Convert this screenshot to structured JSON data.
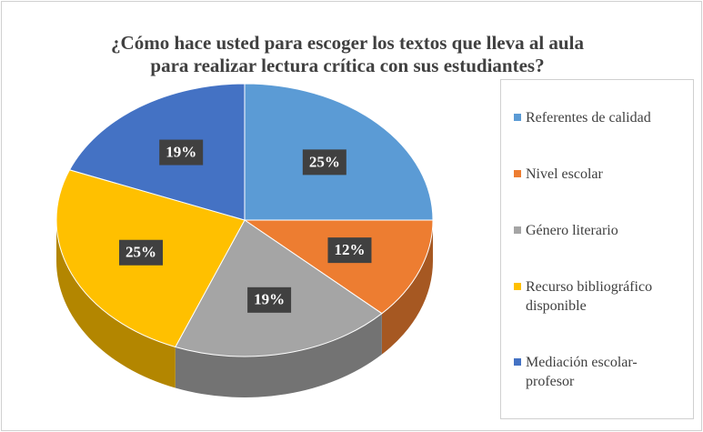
{
  "chart_data": {
    "type": "pie",
    "title": [
      "¿Cómo hace usted para escoger los textos que lleva al aula",
      "para realizar lectura crítica con sus estudiantes?"
    ],
    "categories": [
      "Referentes de calidad",
      "Nivel escolar",
      "Género literario",
      "Recurso bibliográfico disponible",
      "Mediación escolar-profesor"
    ],
    "values": [
      25,
      12,
      19,
      25,
      19
    ],
    "value_labels": [
      "25%",
      "12%",
      "19%",
      "25%",
      "19%"
    ],
    "colors": [
      "#5b9bd5",
      "#ed7d31",
      "#a5a5a5",
      "#ffc000",
      "#4472c4"
    ],
    "legend": "right"
  }
}
